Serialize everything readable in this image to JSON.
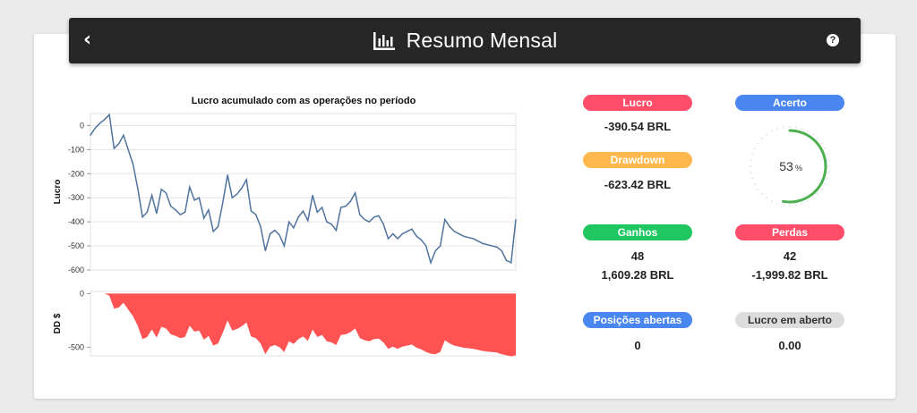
{
  "header": {
    "title": "Resumo Mensal",
    "back_icon": "chevron-left-icon",
    "chart_icon": "bar-chart-icon",
    "help_icon": "question-circle-icon"
  },
  "chart_data": [
    {
      "type": "line",
      "title": "Lucro acumulado com as operações no período",
      "ylabel": "Lucro",
      "xlabel": "",
      "ylim": [
        -600,
        50
      ],
      "yticks": [
        0,
        -100,
        -200,
        -300,
        -400,
        -500,
        -600
      ],
      "grid": true,
      "color": "#4f739e",
      "x": [
        0,
        1,
        2,
        3,
        4,
        5,
        6,
        7,
        8,
        9,
        10,
        11,
        12,
        13,
        14,
        15,
        16,
        17,
        18,
        19,
        20,
        21,
        22,
        23,
        24,
        25,
        26,
        27,
        28,
        29,
        30,
        31,
        32,
        33,
        34,
        35,
        36,
        37,
        38,
        39,
        40,
        41,
        42,
        43,
        44,
        45,
        46,
        47,
        48,
        49,
        50,
        51,
        52,
        53,
        54,
        55,
        56,
        57,
        58,
        59,
        60,
        61,
        62,
        63,
        64,
        65,
        66,
        67,
        68,
        69,
        70,
        71,
        72,
        73,
        74,
        75,
        76,
        77,
        78,
        79,
        80,
        81,
        82,
        83,
        84,
        85,
        86,
        87,
        88,
        89,
        90
      ],
      "y": [
        -40,
        -10,
        10,
        25,
        45,
        -95,
        -75,
        -40,
        -100,
        -160,
        -260,
        -380,
        -360,
        -290,
        -365,
        -265,
        -280,
        -335,
        -350,
        -370,
        -360,
        -255,
        -310,
        -300,
        -385,
        -350,
        -440,
        -420,
        -320,
        -205,
        -300,
        -285,
        -260,
        -225,
        -355,
        -370,
        -420,
        -520,
        -450,
        -435,
        -455,
        -500,
        -400,
        -425,
        -380,
        -355,
        -395,
        -290,
        -360,
        -340,
        -400,
        -410,
        -435,
        -340,
        -335,
        -315,
        -280,
        -370,
        -390,
        -400,
        -380,
        -375,
        -410,
        -470,
        -450,
        -470,
        -450,
        -440,
        -430,
        -460,
        -475,
        -500,
        -570,
        -520,
        -500,
        -390,
        -420,
        -440,
        -450,
        -460,
        -465,
        -470,
        -480,
        -490,
        -495,
        -500,
        -505,
        -520,
        -560,
        -570,
        -390
      ]
    },
    {
      "type": "area",
      "ylabel": "DD $",
      "ylim": [
        -580,
        20
      ],
      "yticks": [
        0,
        -500
      ],
      "grid": false,
      "color": "#ff5252",
      "x": [
        0,
        1,
        2,
        3,
        4,
        5,
        6,
        7,
        8,
        9,
        10,
        11,
        12,
        13,
        14,
        15,
        16,
        17,
        18,
        19,
        20,
        21,
        22,
        23,
        24,
        25,
        26,
        27,
        28,
        29,
        30,
        31,
        32,
        33,
        34,
        35,
        36,
        37,
        38,
        39,
        40,
        41,
        42,
        43,
        44,
        45,
        46,
        47,
        48,
        49,
        50,
        51,
        52,
        53,
        54,
        55,
        56,
        57,
        58,
        59,
        60,
        61,
        62,
        63,
        64,
        65,
        66,
        67,
        68,
        69,
        70,
        71,
        72,
        73,
        74,
        75,
        76,
        77,
        78,
        79,
        80,
        81,
        82,
        83,
        84,
        85,
        86,
        87,
        88,
        89,
        90
      ],
      "y": [
        0,
        0,
        0,
        0,
        -20,
        -140,
        -130,
        -85,
        -150,
        -210,
        -300,
        -425,
        -405,
        -335,
        -410,
        -310,
        -325,
        -380,
        -395,
        -415,
        -405,
        -300,
        -355,
        -345,
        -430,
        -395,
        -485,
        -465,
        -365,
        -250,
        -345,
        -330,
        -305,
        -270,
        -400,
        -415,
        -465,
        -565,
        -495,
        -480,
        -500,
        -545,
        -445,
        -470,
        -425,
        -400,
        -440,
        -335,
        -405,
        -385,
        -445,
        -455,
        -480,
        -385,
        -380,
        -360,
        -325,
        -415,
        -435,
        -445,
        -425,
        -420,
        -455,
        -515,
        -495,
        -515,
        -495,
        -485,
        -475,
        -505,
        -520,
        -545,
        -560,
        -565,
        -545,
        -435,
        -465,
        -485,
        -495,
        -505,
        -510,
        -515,
        -525,
        -535,
        -540,
        -545,
        -550,
        -565,
        -575,
        -585,
        -575
      ]
    }
  ],
  "stats": {
    "lucro": {
      "label": "Lucro",
      "value": "-390.54 BRL",
      "color": "#ff4d6a"
    },
    "drawdown": {
      "label": "Drawdown",
      "value": "-623.42 BRL",
      "color": "#ffb84d"
    },
    "acerto": {
      "label": "Acerto",
      "percent": 53,
      "value_text": "53",
      "unit": "%",
      "color": "#4a86f0",
      "arc_color": "#4caf50"
    },
    "ganhos": {
      "label": "Ganhos",
      "count": "48",
      "value": "1,609.28 BRL",
      "color": "#1ec760"
    },
    "perdas": {
      "label": "Perdas",
      "count": "42",
      "value": "-1,999.82 BRL",
      "color": "#ff4d6a"
    },
    "posicoes": {
      "label": "Posições abertas",
      "value": "0",
      "color": "#4a86f0"
    },
    "lucro_aberto": {
      "label": "Lucro em aberto",
      "value": "0.00",
      "color": "#dddddd"
    }
  }
}
